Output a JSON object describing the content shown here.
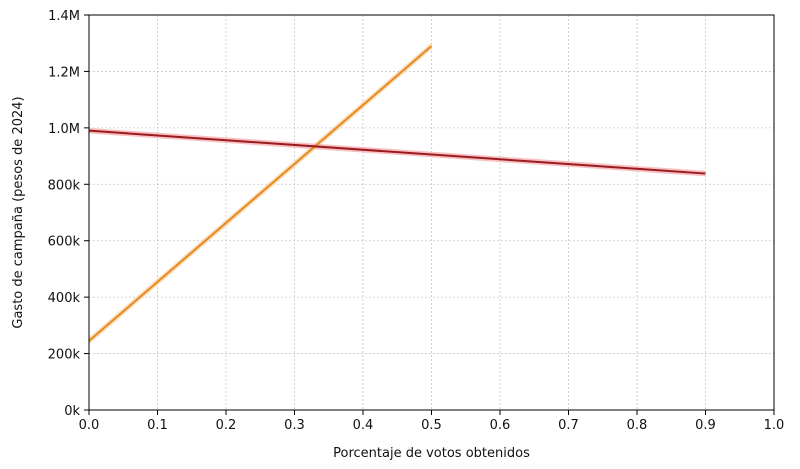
{
  "chart_data": {
    "type": "line",
    "title": "",
    "xlabel": "Porcentaje de votos obtenidos",
    "ylabel": "Gasto de campaña (pesos de 2024)",
    "xlim": [
      0.0,
      1.0
    ],
    "ylim": [
      0,
      1400000
    ],
    "x_ticks": [
      0.0,
      0.1,
      0.2,
      0.3,
      0.4,
      0.5,
      0.6,
      0.7,
      0.8,
      0.9,
      1.0
    ],
    "x_tick_labels": [
      "0.0",
      "0.1",
      "0.2",
      "0.3",
      "0.4",
      "0.5",
      "0.6",
      "0.7",
      "0.8",
      "0.9",
      "1.0"
    ],
    "y_ticks": [
      0,
      200000,
      400000,
      600000,
      800000,
      1000000,
      1200000,
      1400000
    ],
    "y_tick_labels": [
      "0k",
      "200k",
      "400k",
      "600k",
      "800k",
      "1.0M",
      "1.2M",
      "1.4M"
    ],
    "grid": true,
    "legend": "none",
    "series": [
      {
        "color": "#e8891c",
        "band_color": "#f6cfa0",
        "x": [
          0.0,
          0.5
        ],
        "y": [
          245000,
          1290000
        ],
        "band_halfwidth": 12000
      },
      {
        "color": "#9b1b1f",
        "band_color": "#f2a7aa",
        "x": [
          0.0,
          0.9
        ],
        "y": [
          990000,
          838000
        ],
        "band_halfwidth": 10000
      }
    ]
  }
}
